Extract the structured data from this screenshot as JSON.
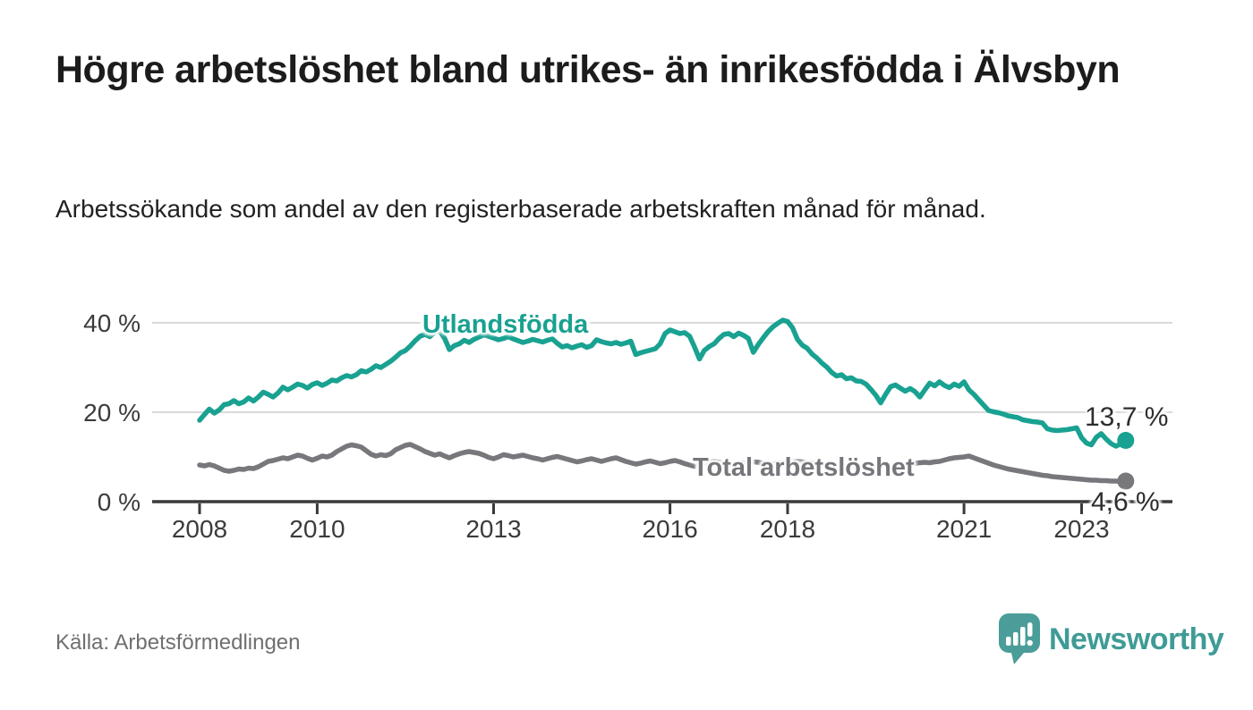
{
  "header": {
    "title": "Högre arbetslöshet bland utrikes- än inrikesfödda i Älvsbyn",
    "subtitle": "Arbetssökande som andel av den registerbaserade arbetskraften månad för månad."
  },
  "footer": {
    "source": "Källa: Arbetsförmedlingen",
    "brand": "Newsworthy",
    "brand_color": "#3f9b96",
    "logo_icon": "newsworthy-speech-bubble-barchart-icon"
  },
  "colors": {
    "accent_teal": "#19a191",
    "series_gray": "#77777c",
    "grid": "#dadada",
    "axis": "#3a3a3a",
    "axis_text": "#3b3b3b",
    "annotation_text": "#2d2d2d"
  },
  "chart_data": {
    "type": "line",
    "title": "Högre arbetslöshet bland utrikes- än inrikesfödda i Älvsbyn",
    "xlabel": "",
    "ylabel": "Arbetssökande som andel av den registerbaserade arbetskraften",
    "x_unit": "month",
    "x_start": "2008-01",
    "x_end": "2023-10",
    "ylim": [
      0,
      44
    ],
    "grid": "horizontal",
    "legend_position": "inline-labels",
    "xticks": [
      2008,
      2010,
      2013,
      2016,
      2018,
      2021,
      2023
    ],
    "yticks": [
      {
        "value": 0,
        "label": "0 %"
      },
      {
        "value": 20,
        "label": "20 %"
      },
      {
        "value": 40,
        "label": "40 %"
      }
    ],
    "series": [
      {
        "name": "Utlandsfödda",
        "label": "Utlandsfödda",
        "end_label": "13,7 %",
        "end_value": 13.7,
        "color": "#19a191",
        "values": [
          18.2,
          19.5,
          20.7,
          19.8,
          20.5,
          21.7,
          21.9,
          22.6,
          21.9,
          22.3,
          23.2,
          22.5,
          23.4,
          24.5,
          24.0,
          23.4,
          24.3,
          25.6,
          25.0,
          25.6,
          26.3,
          26.0,
          25.4,
          26.2,
          26.6,
          26.0,
          26.5,
          27.2,
          27.0,
          27.7,
          28.2,
          27.9,
          28.4,
          29.3,
          29.0,
          29.6,
          30.4,
          30.0,
          30.7,
          31.4,
          32.3,
          33.3,
          33.8,
          34.8,
          36.0,
          37.0,
          37.4,
          36.9,
          37.9,
          38.2,
          36.5,
          34.0,
          34.9,
          35.3,
          36.1,
          35.6,
          36.3,
          36.8,
          37.3,
          37.0,
          36.6,
          36.2,
          36.5,
          36.9,
          36.4,
          36.0,
          35.6,
          35.9,
          36.3,
          36.0,
          35.7,
          36.1,
          36.4,
          35.4,
          34.6,
          34.9,
          34.4,
          34.8,
          35.1,
          34.5,
          34.9,
          36.2,
          35.8,
          35.5,
          35.3,
          35.6,
          35.2,
          35.5,
          35.9,
          32.9,
          33.3,
          33.6,
          33.9,
          34.2,
          35.3,
          37.6,
          38.4,
          38.0,
          37.6,
          37.8,
          37.0,
          34.6,
          31.9,
          33.8,
          34.7,
          35.3,
          36.5,
          37.4,
          37.6,
          36.9,
          37.7,
          37.2,
          36.5,
          33.4,
          35.1,
          36.6,
          38.0,
          39.1,
          39.9,
          40.6,
          40.3,
          38.9,
          36.3,
          35.0,
          34.3,
          33.0,
          32.1,
          31.0,
          30.1,
          28.9,
          28.1,
          28.4,
          27.5,
          27.7,
          27.0,
          26.9,
          26.3,
          25.1,
          23.8,
          22.1,
          24.0,
          25.7,
          26.1,
          25.4,
          24.7,
          25.3,
          24.6,
          23.4,
          25.0,
          26.5,
          25.9,
          26.8,
          26.0,
          25.5,
          26.3,
          25.8,
          26.8,
          25.0,
          24.0,
          22.8,
          21.6,
          20.4,
          20.1,
          19.9,
          19.6,
          19.2,
          19.0,
          18.8,
          18.3,
          18.1,
          17.9,
          17.8,
          17.6,
          16.3,
          16.0,
          15.9,
          16.0,
          16.1,
          16.3,
          16.5,
          14.3,
          13.1,
          12.7,
          14.4,
          15.2,
          14.0,
          13.0,
          12.4,
          12.9,
          13.7
        ]
      },
      {
        "name": "Total arbetslöshet",
        "label": "Total arbetslöshet",
        "end_label": "4,6 %",
        "end_value": 4.6,
        "color": "#77777c",
        "values": [
          8.2,
          8.0,
          8.3,
          8.0,
          7.5,
          7.0,
          6.8,
          7.0,
          7.3,
          7.2,
          7.5,
          7.4,
          7.8,
          8.4,
          9.0,
          9.2,
          9.5,
          9.8,
          9.6,
          10.0,
          10.4,
          10.2,
          9.7,
          9.3,
          9.7,
          10.2,
          10.0,
          10.4,
          11.2,
          11.8,
          12.4,
          12.7,
          12.5,
          12.2,
          11.4,
          10.6,
          10.2,
          10.5,
          10.3,
          10.7,
          11.6,
          12.1,
          12.6,
          12.8,
          12.3,
          11.8,
          11.2,
          10.8,
          10.4,
          10.7,
          10.2,
          9.8,
          10.3,
          10.7,
          11.0,
          11.2,
          11.0,
          10.8,
          10.4,
          9.9,
          9.6,
          10.0,
          10.5,
          10.3,
          10.0,
          10.2,
          10.4,
          10.1,
          9.8,
          9.6,
          9.3,
          9.6,
          9.9,
          10.1,
          9.8,
          9.5,
          9.2,
          8.9,
          9.1,
          9.4,
          9.6,
          9.3,
          9.0,
          9.3,
          9.6,
          9.8,
          9.4,
          9.0,
          8.7,
          8.4,
          8.6,
          8.9,
          9.1,
          8.8,
          8.5,
          8.7,
          9.0,
          9.2,
          8.9,
          8.5,
          8.2,
          7.9,
          8.1,
          8.5,
          8.8,
          9.0,
          8.8,
          8.6,
          8.4,
          8.3,
          8.5,
          8.6,
          8.7,
          8.9,
          8.8,
          8.6,
          8.5,
          8.4,
          8.6,
          8.7,
          8.8,
          8.9,
          9.0,
          8.9,
          8.7,
          8.6,
          8.5,
          8.4,
          8.3,
          8.2,
          8.1,
          8.0,
          8.0,
          7.9,
          7.8,
          7.7,
          7.6,
          7.6,
          7.7,
          7.8,
          7.9,
          8.0,
          8.0,
          8.1,
          8.1,
          8.3,
          8.6,
          8.7,
          8.8,
          8.7,
          8.9,
          9.0,
          9.3,
          9.6,
          9.8,
          9.9,
          10.0,
          10.2,
          9.8,
          9.4,
          9.0,
          8.6,
          8.2,
          7.9,
          7.6,
          7.3,
          7.1,
          6.9,
          6.7,
          6.5,
          6.3,
          6.1,
          5.9,
          5.8,
          5.6,
          5.5,
          5.4,
          5.3,
          5.2,
          5.1,
          5.0,
          4.9,
          4.8,
          4.8,
          4.7,
          4.7,
          4.6,
          4.6,
          4.5,
          4.6
        ]
      }
    ]
  }
}
